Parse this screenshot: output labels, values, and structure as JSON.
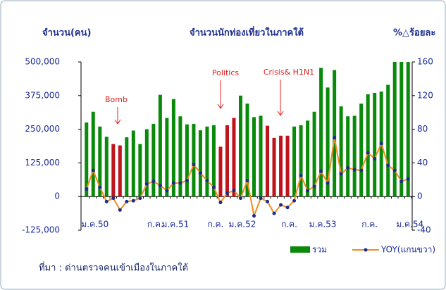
{
  "chart_data": {
    "type": "bar_line",
    "title": "จำนวนนักท่องเที่ยวในภาคใต้",
    "y_label": "จำนวน(คน)",
    "y2_label": "%△ร้อยละ",
    "source": "ที่มา : ด่านตรวจคนเข้าเมืองในภาคใต้",
    "annotations": [
      "Bomb",
      "Politics",
      "Crisis& H1N1"
    ],
    "categories": [
      "ม.ค.50",
      null,
      null,
      null,
      null,
      null,
      null,
      null,
      null,
      "ก.ค.",
      null,
      null,
      "ม.ค.51",
      null,
      null,
      null,
      null,
      null,
      "ก.ค.",
      null,
      null,
      null,
      "ม.ค.52",
      null,
      null,
      null,
      null,
      null,
      null,
      "ก.ค.",
      null,
      null,
      null,
      null,
      "ม.ค.53",
      null,
      null,
      null,
      null,
      null,
      null,
      "ก.ค.",
      null,
      null,
      null,
      null,
      null,
      "ม.ค.54",
      null
    ],
    "series": [
      {
        "name": "รวม",
        "type": "bar",
        "color": "#0a8a0a",
        "colors": [
          "#0a8a0a",
          "#0a8a0a",
          "#0a8a0a",
          "#0a8a0a",
          "#c0141c",
          "#c0141c",
          "#0a8a0a",
          "#0a8a0a",
          "#0a8a0a",
          "#0a8a0a",
          "#0a8a0a",
          "#0a8a0a",
          "#0a8a0a",
          "#0a8a0a",
          "#0a8a0a",
          "#0a8a0a",
          "#0a8a0a",
          "#0a8a0a",
          "#0a8a0a",
          "#0a8a0a",
          "#c0141c",
          "#c0141c",
          "#c0141c",
          "#0a8a0a",
          "#0a8a0a",
          "#0a8a0a",
          "#0a8a0a",
          "#c0141c",
          "#c0141c",
          "#c0141c",
          "#c0141c",
          "#0a8a0a",
          "#0a8a0a",
          "#0a8a0a",
          "#0a8a0a",
          "#0a8a0a",
          "#0a8a0a",
          "#0a8a0a",
          "#0a8a0a",
          "#0a8a0a",
          "#0a8a0a",
          "#0a8a0a",
          "#0a8a0a",
          "#0a8a0a",
          "#0a8a0a",
          "#0a8a0a",
          "#0a8a0a",
          "#0a8a0a",
          "#0a8a0a"
        ],
        "values": [
          275000,
          315000,
          260000,
          222000,
          195000,
          190000,
          220000,
          245000,
          195000,
          250000,
          270000,
          378000,
          292000,
          362000,
          298000,
          268000,
          270000,
          246000,
          260000,
          265000,
          185000,
          265000,
          292000,
          375000,
          345000,
          295000,
          300000,
          263000,
          218000,
          226000,
          226000,
          260000,
          265000,
          282000,
          315000,
          478000,
          405000,
          470000,
          335000,
          298000,
          300000,
          345000,
          380000,
          385000,
          390000,
          415000,
          500000,
          500000,
          500000
        ]
      },
      {
        "name": "YOY(แกนขวา)",
        "type": "line",
        "axis": "y2",
        "color": "#f08c1e",
        "marker_color": "#1c2a8c",
        "values": [
          9,
          31,
          11,
          -6,
          -2,
          -16,
          -6,
          -5,
          -2,
          15,
          18,
          13,
          7,
          16,
          16,
          19,
          38,
          28,
          19,
          11,
          -7,
          4,
          7,
          -2,
          19,
          -23,
          -2,
          -6,
          -20,
          -10,
          -13,
          -5,
          25,
          7,
          12,
          30,
          16,
          70,
          27,
          34,
          32,
          31,
          52,
          45,
          63,
          37,
          31,
          18,
          21
        ]
      }
    ],
    "ylim": [
      -125000,
      500000
    ],
    "yticks": [
      {
        "value": -125000,
        "label": "-125,000"
      },
      0,
      {
        "value": 125000,
        "label": "125,000"
      },
      {
        "value": 250000,
        "label": "250,000"
      },
      {
        "value": 375000,
        "label": "375,000"
      },
      {
        "value": 500000,
        "label": "500,000"
      }
    ],
    "y2lim": [
      -40,
      160
    ],
    "y2ticks": [
      -40,
      0,
      40,
      80,
      120,
      160
    ],
    "grid": false
  }
}
